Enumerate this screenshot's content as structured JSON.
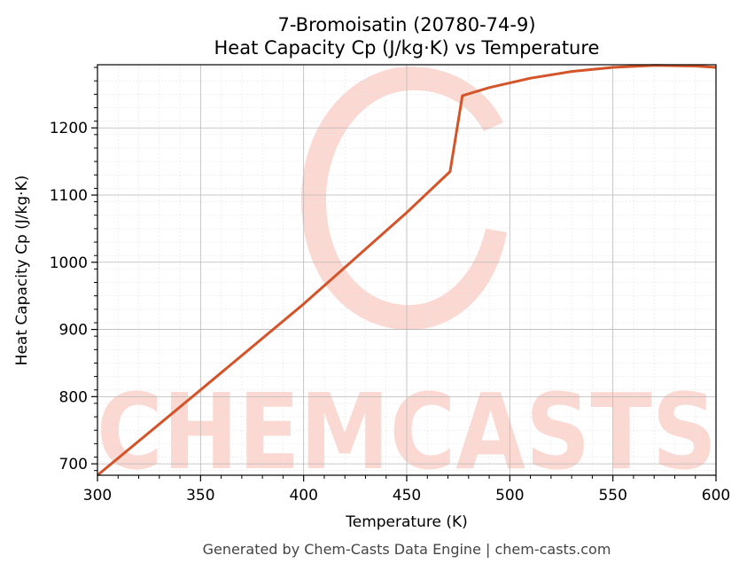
{
  "footer": "Generated by Chem-Casts Data Engine | chem-casts.com",
  "watermark": {
    "text": "CHEMCASTS",
    "color": "#fbd9d2"
  },
  "chart_data": {
    "type": "line",
    "title": "7-Bromoisatin (20780-74-9)",
    "subtitle": "Heat Capacity Cp (J/kg·K) vs Temperature",
    "xlabel": "Temperature (K)",
    "ylabel": "Heat Capacity Cp (J/kg·K)",
    "xlim": [
      300,
      600
    ],
    "ylim": [
      683,
      1294
    ],
    "x_ticks": [
      300,
      350,
      400,
      450,
      500,
      550,
      600
    ],
    "y_ticks": [
      700,
      800,
      900,
      1000,
      1100,
      1200
    ],
    "grid": true,
    "line_color": "#d4542a",
    "series": [
      {
        "x": [
          300,
          350,
          400,
          450,
          471,
          477,
          490,
          510,
          530,
          550,
          570,
          590,
          600
        ],
        "values": [
          683,
          810,
          938,
          1074,
          1135,
          1248,
          1260,
          1274,
          1284,
          1290,
          1293,
          1292,
          1290
        ]
      }
    ]
  }
}
